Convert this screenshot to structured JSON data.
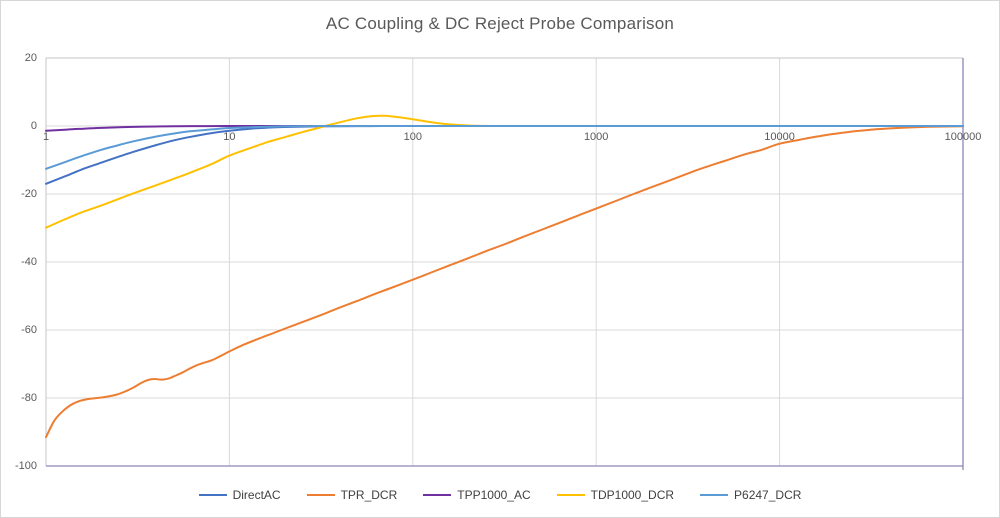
{
  "chart_data": {
    "type": "line",
    "title": "AC Coupling & DC Reject Probe Comparison",
    "xlabel": "",
    "ylabel": "",
    "x_axis": {
      "scale": "log",
      "min": 1,
      "max": 100000,
      "ticks": [
        1,
        10,
        100,
        1000,
        10000,
        100000
      ],
      "tick_labels": [
        "1",
        "10",
        "100",
        "1000",
        "10000",
        "100000"
      ]
    },
    "y_axis": {
      "min": -100,
      "max": 20,
      "ticks": [
        20,
        0,
        -20,
        -40,
        -60,
        -80,
        -100
      ],
      "tick_labels": [
        "20",
        "0",
        "-20",
        "-40",
        "-60",
        "-80",
        "-100"
      ]
    },
    "grid": true,
    "legend_position": "bottom",
    "series": [
      {
        "name": "DirectAC",
        "color": "#4472C4",
        "points": [
          [
            1,
            -17
          ],
          [
            1.3,
            -14.6
          ],
          [
            1.6,
            -12.6
          ],
          [
            2,
            -10.8
          ],
          [
            2.5,
            -9.0
          ],
          [
            3,
            -7.6
          ],
          [
            4,
            -5.6
          ],
          [
            5,
            -4.2
          ],
          [
            6,
            -3.3
          ],
          [
            8,
            -2.1
          ],
          [
            10,
            -1.4
          ],
          [
            13,
            -0.8
          ],
          [
            16,
            -0.5
          ],
          [
            20,
            -0.3
          ],
          [
            30,
            -0.12
          ],
          [
            50,
            -0.04
          ],
          [
            100,
            0
          ],
          [
            1000,
            0
          ],
          [
            10000,
            0
          ],
          [
            100000,
            0
          ]
        ]
      },
      {
        "name": "TPR_DCR",
        "color": "#ED7D31",
        "points": [
          [
            1,
            -91.5
          ],
          [
            1.1,
            -87
          ],
          [
            1.2,
            -84.5
          ],
          [
            1.35,
            -82.2
          ],
          [
            1.5,
            -81
          ],
          [
            1.7,
            -80.3
          ],
          [
            1.9,
            -80
          ],
          [
            2.1,
            -79.7
          ],
          [
            2.4,
            -79.1
          ],
          [
            2.7,
            -78.1
          ],
          [
            3,
            -76.9
          ],
          [
            3.3,
            -75.6
          ],
          [
            3.6,
            -74.7
          ],
          [
            3.9,
            -74.4
          ],
          [
            4.3,
            -74.6
          ],
          [
            4.7,
            -74.2
          ],
          [
            5,
            -73.6
          ],
          [
            5.5,
            -72.6
          ],
          [
            6,
            -71.5
          ],
          [
            6.6,
            -70.4
          ],
          [
            7.2,
            -69.7
          ],
          [
            8,
            -68.9
          ],
          [
            9,
            -67.6
          ],
          [
            10,
            -66.3
          ],
          [
            12,
            -64.3
          ],
          [
            15,
            -62.2
          ],
          [
            18,
            -60.6
          ],
          [
            22,
            -58.8
          ],
          [
            27,
            -57
          ],
          [
            33,
            -55.2
          ],
          [
            40,
            -53.4
          ],
          [
            50,
            -51.4
          ],
          [
            65,
            -49
          ],
          [
            80,
            -47.2
          ],
          [
            100,
            -45.2
          ],
          [
            130,
            -42.8
          ],
          [
            160,
            -40.9
          ],
          [
            200,
            -38.9
          ],
          [
            260,
            -36.5
          ],
          [
            330,
            -34.4
          ],
          [
            400,
            -32.6
          ],
          [
            500,
            -30.6
          ],
          [
            650,
            -28.2
          ],
          [
            800,
            -26.3
          ],
          [
            1000,
            -24.3
          ],
          [
            1300,
            -21.9
          ],
          [
            1600,
            -20
          ],
          [
            2000,
            -18
          ],
          [
            2600,
            -15.7
          ],
          [
            3300,
            -13.6
          ],
          [
            4000,
            -12
          ],
          [
            5000,
            -10.3
          ],
          [
            6500,
            -8.3
          ],
          [
            8000,
            -7
          ],
          [
            10000,
            -5.2
          ],
          [
            13000,
            -4.0
          ],
          [
            16000,
            -3.1
          ],
          [
            20000,
            -2.3
          ],
          [
            26000,
            -1.5
          ],
          [
            33000,
            -1.0
          ],
          [
            40000,
            -0.7
          ],
          [
            50000,
            -0.45
          ],
          [
            65000,
            -0.25
          ],
          [
            80000,
            -0.15
          ],
          [
            100000,
            -0.1
          ]
        ]
      },
      {
        "name": "TPP1000_AC",
        "color": "#7030A0",
        "points": [
          [
            1,
            -1.4
          ],
          [
            1.3,
            -1.05
          ],
          [
            1.6,
            -0.8
          ],
          [
            2,
            -0.55
          ],
          [
            2.5,
            -0.38
          ],
          [
            3,
            -0.27
          ],
          [
            4,
            -0.15
          ],
          [
            5,
            -0.08
          ],
          [
            7,
            -0.03
          ],
          [
            10,
            0
          ],
          [
            100,
            0
          ],
          [
            1000,
            0
          ],
          [
            10000,
            0
          ],
          [
            100000,
            0
          ]
        ]
      },
      {
        "name": "TDP1000_DCR",
        "color": "#FFC000",
        "points": [
          [
            1,
            -29.9
          ],
          [
            1.3,
            -27.2
          ],
          [
            1.6,
            -25.2
          ],
          [
            2,
            -23.4
          ],
          [
            2.5,
            -21.4
          ],
          [
            3,
            -19.8
          ],
          [
            4,
            -17.4
          ],
          [
            5,
            -15.5
          ],
          [
            6,
            -13.9
          ],
          [
            8,
            -11.2
          ],
          [
            10,
            -8.7
          ],
          [
            13,
            -6.5
          ],
          [
            16,
            -4.8
          ],
          [
            20,
            -3.3
          ],
          [
            25,
            -1.8
          ],
          [
            30,
            -0.7
          ],
          [
            35,
            0.3
          ],
          [
            40,
            1.1
          ],
          [
            50,
            2.3
          ],
          [
            60,
            2.9
          ],
          [
            70,
            3.0
          ],
          [
            80,
            2.7
          ],
          [
            100,
            2.0
          ],
          [
            120,
            1.3
          ],
          [
            150,
            0.6
          ],
          [
            200,
            0.15
          ],
          [
            250,
            0.03
          ],
          [
            300,
            0
          ],
          [
            1000,
            0
          ],
          [
            10000,
            0
          ],
          [
            100000,
            0
          ]
        ]
      },
      {
        "name": "P6247_DCR",
        "color": "#5B9BD5",
        "points": [
          [
            1,
            -12.6
          ],
          [
            1.3,
            -10.4
          ],
          [
            1.6,
            -8.7
          ],
          [
            2,
            -7.0
          ],
          [
            2.5,
            -5.6
          ],
          [
            3,
            -4.5
          ],
          [
            4,
            -3.1
          ],
          [
            5,
            -2.2
          ],
          [
            6,
            -1.6
          ],
          [
            8,
            -1.0
          ],
          [
            10,
            -0.6
          ],
          [
            13,
            -0.35
          ],
          [
            16,
            -0.2
          ],
          [
            20,
            -0.1
          ],
          [
            30,
            0
          ],
          [
            100,
            0
          ],
          [
            1000,
            0
          ],
          [
            10000,
            0
          ],
          [
            100000,
            0
          ]
        ]
      }
    ],
    "style": {
      "gridline_color": "#d9d9d9",
      "border_top_left_color": "#c6c6c6",
      "border_bottom_right_color": "#8a87b8",
      "tick_text_color": "#595959",
      "title_color": "#595959",
      "legend_text_color": "#404040"
    }
  }
}
